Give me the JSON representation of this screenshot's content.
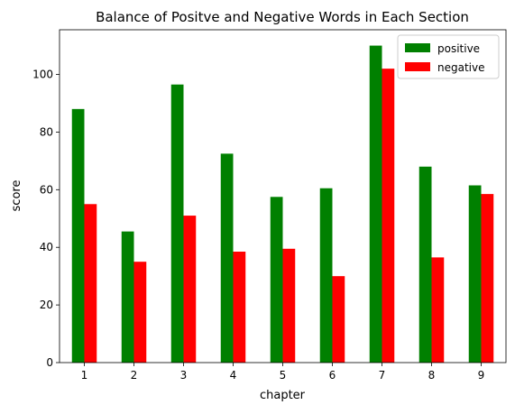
{
  "chart_data": {
    "type": "bar",
    "title": "Balance of Positve and Negative Words in Each Section",
    "xlabel": "chapter",
    "ylabel": "score",
    "categories": [
      "1",
      "2",
      "3",
      "4",
      "5",
      "6",
      "7",
      "8",
      "9"
    ],
    "series": [
      {
        "name": "positive",
        "color": "#008000",
        "values": [
          88,
          45.5,
          96.5,
          72.5,
          57.5,
          60.5,
          110,
          68,
          61.5
        ]
      },
      {
        "name": "negative",
        "color": "#ff0000",
        "values": [
          55,
          35,
          51,
          38.5,
          39.5,
          30,
          102,
          36.5,
          58.5
        ]
      }
    ],
    "ylim": [
      0,
      115.5
    ],
    "yticks": [
      0,
      20,
      40,
      60,
      80,
      100
    ],
    "grid": false,
    "legend_position": "top-right"
  }
}
